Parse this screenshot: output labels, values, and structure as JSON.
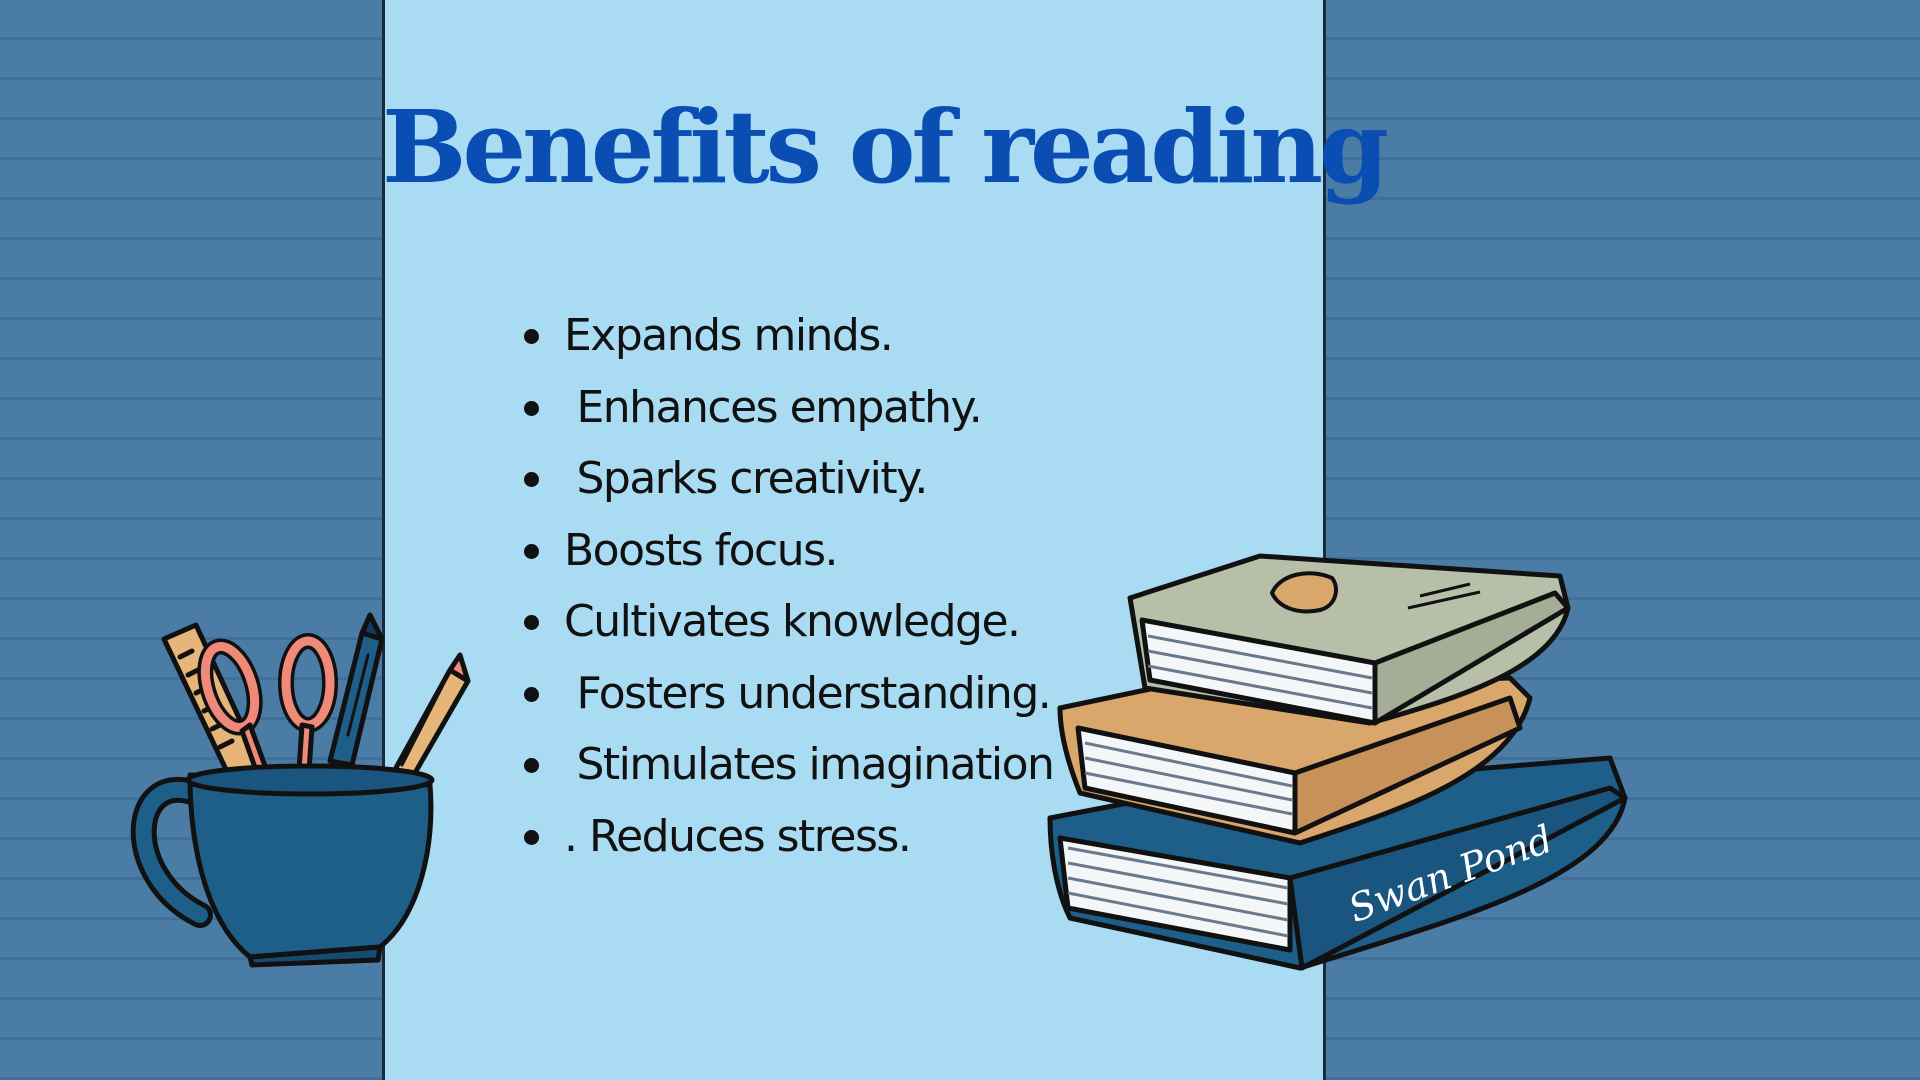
{
  "slide": {
    "title": "Benefits of reading",
    "bullets": [
      "Expands minds.",
      " Enhances empathy.",
      " Sparks creativity.",
      "Boosts focus.",
      "Cultivates knowledge.",
      " Fosters understanding.",
      " Stimulates imagination",
      ". Reduces stress."
    ]
  },
  "illustrations": {
    "pencil_cup": {
      "icon": "pencil-cup-icon"
    },
    "book_stack": {
      "icon": "book-stack-icon",
      "spine_text": "Swan Pond"
    }
  },
  "colors": {
    "background": "#4a7ca6",
    "panel": "#a9dcf2",
    "title": "#0a4db3",
    "text": "#111111",
    "book_blue": "#1e5f8a",
    "book_orange": "#d9a66c",
    "book_gray": "#b7bfa8",
    "scissors": "#f08a78"
  }
}
